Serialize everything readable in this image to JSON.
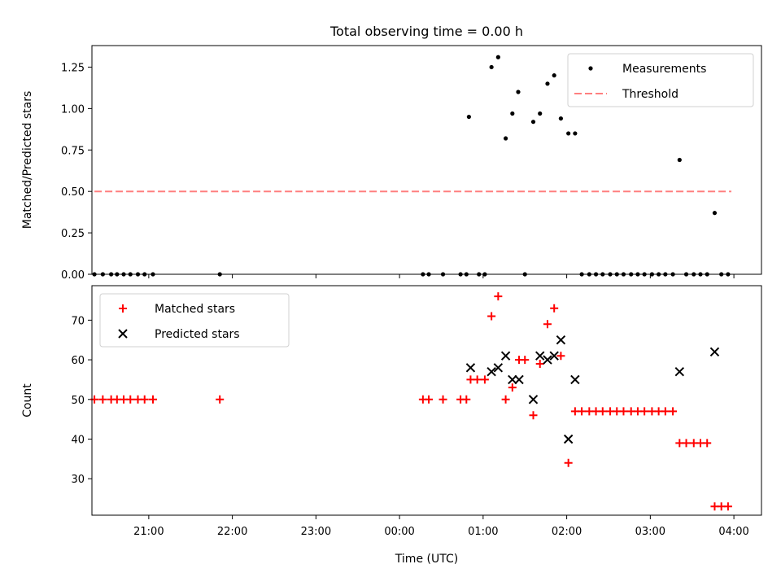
{
  "chart_data": [
    {
      "type": "scatter",
      "title": "Total observing time = 0.00 h",
      "xlabel": "",
      "ylabel": "Matched/Predicted stars",
      "xlim": [
        -3.68,
        4.33
      ],
      "ylim": [
        0,
        1.38
      ],
      "yticks": [
        0.0,
        0.25,
        0.5,
        0.75,
        1.0,
        1.25
      ],
      "ytick_labels": [
        "0.00",
        "0.25",
        "0.50",
        "0.75",
        "1.00",
        "1.25"
      ],
      "xticks": [
        -4,
        -3,
        -2,
        -1,
        0,
        1,
        2,
        3,
        4
      ],
      "xtick_labels": [],
      "legend_position": "top-right",
      "series": [
        {
          "name": "Measurements",
          "kind": "points",
          "color": "#000000",
          "points": [
            [
              -3.65,
              0
            ],
            [
              -3.55,
              0
            ],
            [
              -3.45,
              0
            ],
            [
              -3.38,
              0
            ],
            [
              -3.3,
              0
            ],
            [
              -3.22,
              0
            ],
            [
              -3.13,
              0
            ],
            [
              -3.05,
              0
            ],
            [
              -2.95,
              0
            ],
            [
              -2.15,
              0
            ],
            [
              0.28,
              0
            ],
            [
              0.35,
              0
            ],
            [
              0.52,
              0
            ],
            [
              0.73,
              0
            ],
            [
              0.8,
              0
            ],
            [
              0.83,
              0.95
            ],
            [
              0.95,
              0
            ],
            [
              1.02,
              0
            ],
            [
              1.1,
              1.25
            ],
            [
              1.18,
              1.31
            ],
            [
              1.27,
              0.82
            ],
            [
              1.35,
              0.97
            ],
            [
              1.42,
              1.1
            ],
            [
              1.5,
              0
            ],
            [
              1.6,
              0.92
            ],
            [
              1.68,
              0.97
            ],
            [
              1.77,
              1.15
            ],
            [
              1.85,
              1.2
            ],
            [
              1.93,
              0.94
            ],
            [
              2.02,
              0.85
            ],
            [
              2.1,
              0.85
            ],
            [
              2.18,
              0
            ],
            [
              2.27,
              0
            ],
            [
              2.35,
              0
            ],
            [
              2.43,
              0
            ],
            [
              2.52,
              0
            ],
            [
              2.6,
              0
            ],
            [
              2.68,
              0
            ],
            [
              2.77,
              0
            ],
            [
              2.85,
              0
            ],
            [
              2.93,
              0
            ],
            [
              3.02,
              0
            ],
            [
              3.1,
              0
            ],
            [
              3.18,
              0
            ],
            [
              3.27,
              0
            ],
            [
              3.35,
              0.69
            ],
            [
              3.43,
              0
            ],
            [
              3.52,
              0
            ],
            [
              3.6,
              0
            ],
            [
              3.68,
              0
            ],
            [
              3.77,
              0.37
            ],
            [
              3.85,
              0
            ],
            [
              3.93,
              0
            ]
          ]
        },
        {
          "name": "Threshold",
          "kind": "dashed-line",
          "color": "#ff7f7f",
          "points": [
            [
              -3.65,
              0.5
            ],
            [
              3.97,
              0.5
            ]
          ]
        }
      ]
    },
    {
      "type": "scatter",
      "title": "",
      "xlabel": "Time (UTC)",
      "ylabel": "Count",
      "xlim": [
        -3.68,
        4.33
      ],
      "ylim": [
        20.8,
        78.7
      ],
      "yticks": [
        30,
        40,
        50,
        60,
        70
      ],
      "ytick_labels": [
        "30",
        "40",
        "50",
        "60",
        "70"
      ],
      "xticks": [
        -4,
        -3,
        -2,
        -1,
        0,
        1,
        2,
        3,
        4
      ],
      "xtick_labels": [
        "20:00",
        "21:00",
        "22:00",
        "23:00",
        "00:00",
        "01:00",
        "02:00",
        "03:00",
        "04:00"
      ],
      "legend_position": "top-left",
      "series": [
        {
          "name": "Matched stars",
          "marker": "+",
          "color": "#ff0000",
          "points": [
            [
              -3.65,
              50
            ],
            [
              -3.55,
              50
            ],
            [
              -3.45,
              50
            ],
            [
              -3.38,
              50
            ],
            [
              -3.3,
              50
            ],
            [
              -3.22,
              50
            ],
            [
              -3.13,
              50
            ],
            [
              -3.05,
              50
            ],
            [
              -2.95,
              50
            ],
            [
              -2.15,
              50
            ],
            [
              0.28,
              50
            ],
            [
              0.35,
              50
            ],
            [
              0.52,
              50
            ],
            [
              0.73,
              50
            ],
            [
              0.8,
              50
            ],
            [
              0.85,
              55
            ],
            [
              0.93,
              55
            ],
            [
              1.02,
              55
            ],
            [
              1.1,
              71
            ],
            [
              1.18,
              76
            ],
            [
              1.27,
              50
            ],
            [
              1.35,
              53
            ],
            [
              1.43,
              60
            ],
            [
              1.5,
              60
            ],
            [
              1.6,
              46
            ],
            [
              1.68,
              59
            ],
            [
              1.77,
              69
            ],
            [
              1.85,
              73
            ],
            [
              1.93,
              61
            ],
            [
              2.02,
              34
            ],
            [
              2.1,
              47
            ],
            [
              2.18,
              47
            ],
            [
              2.27,
              47
            ],
            [
              2.35,
              47
            ],
            [
              2.43,
              47
            ],
            [
              2.52,
              47
            ],
            [
              2.6,
              47
            ],
            [
              2.68,
              47
            ],
            [
              2.77,
              47
            ],
            [
              2.85,
              47
            ],
            [
              2.93,
              47
            ],
            [
              3.02,
              47
            ],
            [
              3.1,
              47
            ],
            [
              3.18,
              47
            ],
            [
              3.27,
              47
            ],
            [
              3.35,
              39
            ],
            [
              3.43,
              39
            ],
            [
              3.52,
              39
            ],
            [
              3.6,
              39
            ],
            [
              3.68,
              39
            ],
            [
              3.77,
              23
            ],
            [
              3.85,
              23
            ],
            [
              3.93,
              23
            ]
          ]
        },
        {
          "name": "Predicted stars",
          "marker": "x",
          "color": "#000000",
          "points": [
            [
              0.85,
              58
            ],
            [
              1.1,
              57
            ],
            [
              1.18,
              58
            ],
            [
              1.27,
              61
            ],
            [
              1.35,
              55
            ],
            [
              1.43,
              55
            ],
            [
              1.6,
              50
            ],
            [
              1.68,
              61
            ],
            [
              1.77,
              60
            ],
            [
              1.85,
              61
            ],
            [
              1.93,
              65
            ],
            [
              2.02,
              40
            ],
            [
              2.1,
              55
            ],
            [
              3.35,
              57
            ],
            [
              3.77,
              62
            ]
          ]
        }
      ]
    }
  ]
}
